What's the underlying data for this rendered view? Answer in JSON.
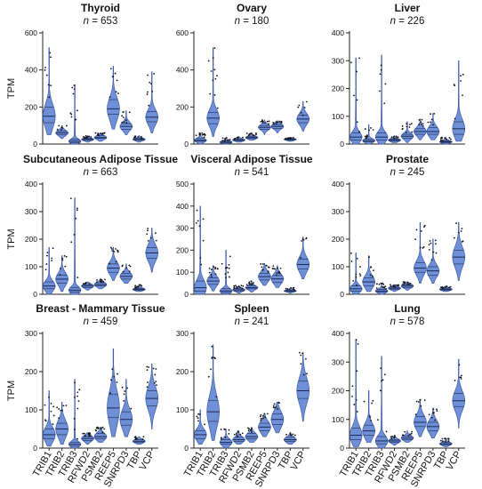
{
  "figure": {
    "y_label": "TPM",
    "genes": [
      "TRIB1",
      "TRIB2",
      "TRIB3",
      "RFWD2",
      "PSMB2",
      "REEP5",
      "SNRPD3",
      "TBP",
      "VCP"
    ],
    "n_prefix": "n",
    "n_eq": " = "
  },
  "colors": {
    "violin_fill": "#6f8fd6",
    "violin_stroke": "#3d5aa8",
    "text": "#111111",
    "axis": "#222222"
  },
  "chart_data": [
    {
      "type": "violin",
      "title": "Thyroid",
      "n": "653",
      "ylabel": "TPM",
      "ylim": [
        0,
        600
      ],
      "yticks": [
        0,
        200,
        400,
        600
      ],
      "categories": [
        "TRIB1",
        "TRIB2",
        "TRIB3",
        "RFWD2",
        "PSMB2",
        "REEP5",
        "SNRPD3",
        "TBP",
        "VCP"
      ],
      "series": [
        {
          "category": "TRIB1",
          "min": 50,
          "q1": 115,
          "median": 150,
          "q3": 200,
          "max": 520
        },
        {
          "category": "TRIB2",
          "min": 30,
          "q1": 50,
          "median": 60,
          "q3": 70,
          "max": 100
        },
        {
          "category": "TRIB3",
          "min": 0,
          "q1": 8,
          "median": 15,
          "q3": 25,
          "max": 320
        },
        {
          "category": "RFWD2",
          "min": 10,
          "q1": 20,
          "median": 25,
          "q3": 30,
          "max": 45
        },
        {
          "category": "PSMB2",
          "min": 15,
          "q1": 30,
          "median": 35,
          "q3": 45,
          "max": 60
        },
        {
          "category": "REEP5",
          "min": 80,
          "q1": 160,
          "median": 190,
          "q3": 240,
          "max": 420
        },
        {
          "category": "SNRPD3",
          "min": 50,
          "q1": 80,
          "median": 95,
          "q3": 110,
          "max": 180
        },
        {
          "category": "TBP",
          "min": 10,
          "q1": 20,
          "median": 25,
          "q3": 30,
          "max": 45
        },
        {
          "category": "VCP",
          "min": 60,
          "q1": 120,
          "median": 145,
          "q3": 175,
          "max": 390
        }
      ]
    },
    {
      "type": "violin",
      "title": "Ovary",
      "n": "180",
      "ylabel": "",
      "ylim": [
        0,
        600
      ],
      "yticks": [
        0,
        200,
        400,
        600
      ],
      "categories": [
        "TRIB1",
        "TRIB2",
        "TRIB3",
        "RFWD2",
        "PSMB2",
        "REEP5",
        "SNRPD3",
        "TBP",
        "VCP"
      ],
      "series": [
        {
          "category": "TRIB1",
          "min": 0,
          "q1": 15,
          "median": 20,
          "q3": 30,
          "max": 60
        },
        {
          "category": "TRIB2",
          "min": 40,
          "q1": 110,
          "median": 140,
          "q3": 170,
          "max": 520
        },
        {
          "category": "TRIB3",
          "min": 0,
          "q1": 5,
          "median": 10,
          "q3": 15,
          "max": 35
        },
        {
          "category": "RFWD2",
          "min": 10,
          "q1": 18,
          "median": 22,
          "q3": 28,
          "max": 40
        },
        {
          "category": "PSMB2",
          "min": 20,
          "q1": 30,
          "median": 35,
          "q3": 42,
          "max": 60
        },
        {
          "category": "REEP5",
          "min": 50,
          "q1": 80,
          "median": 90,
          "q3": 100,
          "max": 130
        },
        {
          "category": "SNRPD3",
          "min": 60,
          "q1": 85,
          "median": 95,
          "q3": 105,
          "max": 125
        },
        {
          "category": "TBP",
          "min": 15,
          "q1": 20,
          "median": 25,
          "q3": 28,
          "max": 35
        },
        {
          "category": "VCP",
          "min": 70,
          "q1": 115,
          "median": 135,
          "q3": 155,
          "max": 230
        }
      ]
    },
    {
      "type": "violin",
      "title": "Liver",
      "n": "226",
      "ylabel": "",
      "ylim": [
        0,
        400
      ],
      "yticks": [
        0,
        100,
        200,
        300,
        400
      ],
      "categories": [
        "TRIB1",
        "TRIB2",
        "TRIB3",
        "RFWD2",
        "PSMB2",
        "REEP5",
        "SNRPD3",
        "TBP",
        "VCP"
      ],
      "series": [
        {
          "category": "TRIB1",
          "min": 0,
          "q1": 15,
          "median": 25,
          "q3": 40,
          "max": 310
        },
        {
          "category": "TRIB2",
          "min": 0,
          "q1": 8,
          "median": 12,
          "q3": 18,
          "max": 70
        },
        {
          "category": "TRIB3",
          "min": 0,
          "q1": 15,
          "median": 25,
          "q3": 40,
          "max": 320
        },
        {
          "category": "RFWD2",
          "min": 5,
          "q1": 10,
          "median": 14,
          "q3": 18,
          "max": 30
        },
        {
          "category": "PSMB2",
          "min": 5,
          "q1": 20,
          "median": 28,
          "q3": 35,
          "max": 80
        },
        {
          "category": "REEP5",
          "min": 15,
          "q1": 35,
          "median": 45,
          "q3": 55,
          "max": 90
        },
        {
          "category": "SNRPD3",
          "min": 15,
          "q1": 35,
          "median": 45,
          "q3": 60,
          "max": 110
        },
        {
          "category": "TBP",
          "min": 0,
          "q1": 5,
          "median": 8,
          "q3": 12,
          "max": 25
        },
        {
          "category": "VCP",
          "min": 10,
          "q1": 35,
          "median": 55,
          "q3": 80,
          "max": 300
        }
      ]
    },
    {
      "type": "violin",
      "title": "Subcutaneous Adipose Tissue",
      "n": "663",
      "ylabel": "TPM",
      "ylim": [
        0,
        400
      ],
      "yticks": [
        0,
        100,
        200,
        300,
        400
      ],
      "categories": [
        "TRIB1",
        "TRIB2",
        "TRIB3",
        "RFWD2",
        "PSMB2",
        "REEP5",
        "SNRPD3",
        "TBP",
        "VCP"
      ],
      "series": [
        {
          "category": "TRIB1",
          "min": 0,
          "q1": 20,
          "median": 30,
          "q3": 45,
          "max": 170
        },
        {
          "category": "TRIB2",
          "min": 10,
          "q1": 40,
          "median": 55,
          "q3": 70,
          "max": 140
        },
        {
          "category": "TRIB3",
          "min": 0,
          "q1": 8,
          "median": 15,
          "q3": 25,
          "max": 350
        },
        {
          "category": "RFWD2",
          "min": 15,
          "q1": 25,
          "median": 30,
          "q3": 35,
          "max": 45
        },
        {
          "category": "PSMB2",
          "min": 20,
          "q1": 30,
          "median": 35,
          "q3": 42,
          "max": 55
        },
        {
          "category": "REEP5",
          "min": 50,
          "q1": 80,
          "median": 95,
          "q3": 110,
          "max": 170
        },
        {
          "category": "SNRPD3",
          "min": 40,
          "q1": 55,
          "median": 65,
          "q3": 75,
          "max": 110
        },
        {
          "category": "TBP",
          "min": 10,
          "q1": 15,
          "median": 18,
          "q3": 22,
          "max": 35
        },
        {
          "category": "VCP",
          "min": 80,
          "q1": 130,
          "median": 150,
          "q3": 170,
          "max": 240
        }
      ]
    },
    {
      "type": "violin",
      "title": "Visceral Adipose Tissue",
      "n": "541",
      "ylabel": "",
      "ylim": [
        0,
        500
      ],
      "yticks": [
        0,
        100,
        200,
        300,
        400,
        500
      ],
      "categories": [
        "TRIB1",
        "TRIB2",
        "TRIB3",
        "RFWD2",
        "PSMB2",
        "REEP5",
        "SNRPD3",
        "TBP",
        "VCP"
      ],
      "series": [
        {
          "category": "TRIB1",
          "min": 0,
          "q1": 15,
          "median": 30,
          "q3": 60,
          "max": 400
        },
        {
          "category": "TRIB2",
          "min": 15,
          "q1": 45,
          "median": 60,
          "q3": 75,
          "max": 130
        },
        {
          "category": "TRIB3",
          "min": 0,
          "q1": 8,
          "median": 15,
          "q3": 25,
          "max": 200
        },
        {
          "category": "RFWD2",
          "min": 5,
          "q1": 15,
          "median": 20,
          "q3": 25,
          "max": 40
        },
        {
          "category": "PSMB2",
          "min": 10,
          "q1": 25,
          "median": 30,
          "q3": 38,
          "max": 60
        },
        {
          "category": "REEP5",
          "min": 40,
          "q1": 65,
          "median": 80,
          "q3": 95,
          "max": 140
        },
        {
          "category": "SNRPD3",
          "min": 30,
          "q1": 55,
          "median": 70,
          "q3": 85,
          "max": 130
        },
        {
          "category": "TBP",
          "min": 5,
          "q1": 12,
          "median": 15,
          "q3": 18,
          "max": 30
        },
        {
          "category": "VCP",
          "min": 70,
          "q1": 115,
          "median": 135,
          "q3": 160,
          "max": 260
        }
      ]
    },
    {
      "type": "violin",
      "title": "Prostate",
      "n": "245",
      "ylabel": "",
      "ylim": [
        0,
        400
      ],
      "yticks": [
        0,
        100,
        200,
        300,
        400
      ],
      "categories": [
        "TRIB1",
        "TRIB2",
        "TRIB3",
        "RFWD2",
        "PSMB2",
        "REEP5",
        "SNRPD3",
        "TBP",
        "VCP"
      ],
      "series": [
        {
          "category": "TRIB1",
          "min": 0,
          "q1": 12,
          "median": 20,
          "q3": 30,
          "max": 150
        },
        {
          "category": "TRIB2",
          "min": 10,
          "q1": 30,
          "median": 45,
          "q3": 60,
          "max": 140
        },
        {
          "category": "TRIB3",
          "min": 0,
          "q1": 8,
          "median": 12,
          "q3": 18,
          "max": 40
        },
        {
          "category": "RFWD2",
          "min": 10,
          "q1": 18,
          "median": 22,
          "q3": 26,
          "max": 35
        },
        {
          "category": "PSMB2",
          "min": 15,
          "q1": 25,
          "median": 30,
          "q3": 35,
          "max": 45
        },
        {
          "category": "REEP5",
          "min": 40,
          "q1": 80,
          "median": 95,
          "q3": 115,
          "max": 260
        },
        {
          "category": "SNRPD3",
          "min": 40,
          "q1": 70,
          "median": 85,
          "q3": 100,
          "max": 200
        },
        {
          "category": "TBP",
          "min": 10,
          "q1": 15,
          "median": 18,
          "q3": 22,
          "max": 30
        },
        {
          "category": "VCP",
          "min": 50,
          "q1": 110,
          "median": 135,
          "q3": 160,
          "max": 260
        }
      ]
    },
    {
      "type": "violin",
      "title": "Breast - Mammary Tissue",
      "n": "459",
      "ylabel": "TPM",
      "ylim": [
        0,
        300
      ],
      "yticks": [
        0,
        100,
        200,
        300
      ],
      "categories": [
        "TRIB1",
        "TRIB2",
        "TRIB3",
        "RFWD2",
        "PSMB2",
        "REEP5",
        "SNRPD3",
        "TBP",
        "VCP"
      ],
      "series": [
        {
          "category": "TRIB1",
          "min": 5,
          "q1": 25,
          "median": 35,
          "q3": 50,
          "max": 150
        },
        {
          "category": "TRIB2",
          "min": 10,
          "q1": 35,
          "median": 50,
          "q3": 65,
          "max": 120
        },
        {
          "category": "TRIB3",
          "min": 0,
          "q1": 5,
          "median": 10,
          "q3": 15,
          "max": 180
        },
        {
          "category": "RFWD2",
          "min": 10,
          "q1": 20,
          "median": 25,
          "q3": 30,
          "max": 40
        },
        {
          "category": "PSMB2",
          "min": 15,
          "q1": 25,
          "median": 30,
          "q3": 38,
          "max": 55
        },
        {
          "category": "REEP5",
          "min": 30,
          "q1": 80,
          "median": 105,
          "q3": 140,
          "max": 260
        },
        {
          "category": "SNRPD3",
          "min": 30,
          "q1": 60,
          "median": 75,
          "q3": 95,
          "max": 180
        },
        {
          "category": "TBP",
          "min": 10,
          "q1": 15,
          "median": 18,
          "q3": 22,
          "max": 30
        },
        {
          "category": "VCP",
          "min": 50,
          "q1": 110,
          "median": 130,
          "q3": 150,
          "max": 220
        }
      ]
    },
    {
      "type": "violin",
      "title": "Spleen",
      "n": "241",
      "ylabel": "",
      "ylim": [
        0,
        300
      ],
      "yticks": [
        0,
        100,
        200,
        300
      ],
      "categories": [
        "TRIB1",
        "TRIB2",
        "TRIB3",
        "RFWD2",
        "PSMB2",
        "REEP5",
        "SNRPD3",
        "TBP",
        "VCP"
      ],
      "series": [
        {
          "category": "TRIB1",
          "min": 10,
          "q1": 25,
          "median": 35,
          "q3": 45,
          "max": 100
        },
        {
          "category": "TRIB2",
          "min": 20,
          "q1": 70,
          "median": 95,
          "q3": 125,
          "max": 270
        },
        {
          "category": "TRIB3",
          "min": 0,
          "q1": 10,
          "median": 15,
          "q3": 22,
          "max": 50
        },
        {
          "category": "RFWD2",
          "min": 10,
          "q1": 18,
          "median": 22,
          "q3": 28,
          "max": 45
        },
        {
          "category": "PSMB2",
          "min": 15,
          "q1": 25,
          "median": 30,
          "q3": 38,
          "max": 55
        },
        {
          "category": "REEP5",
          "min": 30,
          "q1": 45,
          "median": 55,
          "q3": 65,
          "max": 90
        },
        {
          "category": "SNRPD3",
          "min": 40,
          "q1": 62,
          "median": 75,
          "q3": 90,
          "max": 120
        },
        {
          "category": "TBP",
          "min": 10,
          "q1": 18,
          "median": 22,
          "q3": 28,
          "max": 40
        },
        {
          "category": "VCP",
          "min": 70,
          "q1": 130,
          "median": 150,
          "q3": 175,
          "max": 250
        }
      ]
    },
    {
      "type": "violin",
      "title": "Lung",
      "n": "578",
      "ylabel": "",
      "ylim": [
        0,
        400
      ],
      "yticks": [
        0,
        100,
        200,
        300,
        400
      ],
      "categories": [
        "TRIB1",
        "TRIB2",
        "TRIB3",
        "RFWD2",
        "PSMB2",
        "REEP5",
        "SNRPD3",
        "TBP",
        "VCP"
      ],
      "series": [
        {
          "category": "TRIB1",
          "min": 5,
          "q1": 30,
          "median": 45,
          "q3": 70,
          "max": 380
        },
        {
          "category": "TRIB2",
          "min": 20,
          "q1": 45,
          "median": 60,
          "q3": 80,
          "max": 200
        },
        {
          "category": "TRIB3",
          "min": 0,
          "q1": 15,
          "median": 25,
          "q3": 40,
          "max": 320
        },
        {
          "category": "RFWD2",
          "min": 10,
          "q1": 20,
          "median": 25,
          "q3": 30,
          "max": 45
        },
        {
          "category": "PSMB2",
          "min": 20,
          "q1": 30,
          "median": 35,
          "q3": 42,
          "max": 60
        },
        {
          "category": "REEP5",
          "min": 40,
          "q1": 75,
          "median": 90,
          "q3": 110,
          "max": 170
        },
        {
          "category": "SNRPD3",
          "min": 35,
          "q1": 60,
          "median": 75,
          "q3": 90,
          "max": 140
        },
        {
          "category": "TBP",
          "min": 5,
          "q1": 12,
          "median": 15,
          "q3": 20,
          "max": 35
        },
        {
          "category": "VCP",
          "min": 70,
          "q1": 145,
          "median": 165,
          "q3": 190,
          "max": 310
        }
      ]
    }
  ]
}
